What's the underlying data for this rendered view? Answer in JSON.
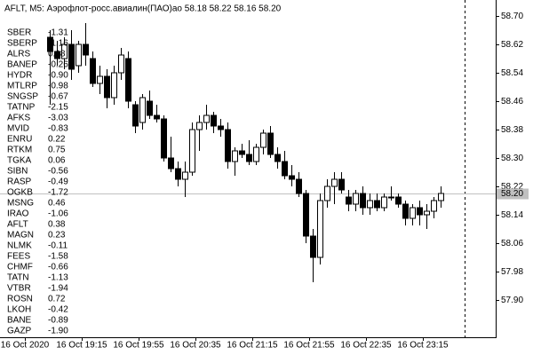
{
  "chart_data": {
    "type": "candlestick",
    "title": "AFLT, M5:  Аэрофлот-росс.авиалин(ПАО)ао  58.18 58.22 58.16 58.20",
    "open": [
      58.64,
      58.6,
      58.58,
      58.62,
      58.56,
      58.62,
      58.58,
      58.51,
      58.53,
      58.47,
      58.54,
      58.58,
      58.45,
      58.4,
      58.46,
      58.42,
      58.41,
      58.3,
      58.27,
      58.24,
      58.26,
      58.38,
      58.4,
      58.42,
      58.39,
      58.38,
      58.29,
      58.32,
      58.31,
      58.29,
      58.33,
      58.37,
      58.31,
      58.29,
      58.25,
      58.24,
      58.2,
      58.08,
      58.02,
      58.18,
      58.22,
      58.24,
      58.19,
      58.17,
      58.2,
      58.16,
      58.18,
      58.16,
      58.19,
      58.19,
      58.17,
      58.13,
      58.16,
      58.14,
      58.15,
      58.18
    ],
    "high": [
      58.66,
      58.63,
      58.64,
      58.66,
      58.63,
      58.68,
      58.6,
      58.56,
      58.55,
      58.56,
      58.61,
      58.6,
      58.46,
      58.48,
      58.49,
      58.45,
      58.42,
      58.36,
      58.29,
      58.29,
      58.4,
      58.42,
      58.45,
      58.43,
      58.41,
      58.4,
      58.33,
      58.34,
      58.35,
      58.34,
      58.38,
      58.39,
      58.33,
      58.32,
      58.28,
      58.26,
      58.21,
      58.1,
      58.2,
      58.24,
      58.26,
      58.26,
      58.21,
      58.21,
      58.22,
      58.2,
      58.2,
      58.2,
      58.22,
      58.2,
      58.18,
      58.17,
      58.18,
      58.17,
      58.19,
      58.22
    ],
    "low": [
      58.45,
      58.56,
      58.55,
      58.52,
      58.54,
      58.56,
      58.5,
      58.48,
      58.44,
      58.45,
      58.52,
      58.44,
      58.37,
      58.38,
      58.41,
      58.4,
      58.29,
      58.26,
      58.22,
      58.19,
      58.25,
      58.32,
      58.38,
      58.37,
      58.36,
      58.27,
      58.25,
      58.3,
      58.28,
      58.28,
      58.31,
      58.3,
      58.27,
      58.24,
      58.22,
      58.19,
      58.06,
      57.95,
      58.0,
      58.16,
      58.17,
      58.2,
      58.15,
      58.15,
      58.14,
      58.14,
      58.15,
      58.15,
      58.18,
      58.16,
      58.11,
      58.11,
      58.11,
      58.1,
      58.13,
      58.16
    ],
    "close": [
      58.6,
      58.58,
      58.62,
      58.55,
      58.62,
      58.59,
      58.51,
      58.53,
      58.47,
      58.54,
      58.59,
      58.46,
      58.39,
      58.47,
      58.42,
      58.41,
      58.3,
      58.27,
      58.24,
      58.26,
      58.38,
      58.4,
      58.42,
      58.39,
      58.38,
      58.29,
      58.32,
      58.31,
      58.29,
      58.33,
      58.37,
      58.31,
      58.29,
      58.25,
      58.24,
      58.2,
      58.08,
      58.02,
      58.18,
      58.22,
      58.24,
      58.21,
      58.17,
      58.2,
      58.16,
      58.18,
      58.16,
      58.19,
      58.19,
      58.17,
      58.13,
      58.16,
      58.14,
      58.15,
      58.18,
      58.2
    ],
    "ylim": [
      57.795,
      58.745
    ],
    "yticks": [
      {
        "value": 58.7,
        "label": "58.70"
      },
      58.62,
      58.54,
      58.46,
      58.38,
      {
        "value": 58.3,
        "label": "58.30"
      },
      58.22,
      58.14,
      58.06,
      57.98,
      {
        "value": 57.9,
        "label": "57.90"
      }
    ],
    "last_price": {
      "value": 58.2,
      "label": "58.20"
    },
    "xtick_labels": [
      "16 Oct 2020",
      "16 Oct 19:15",
      "16 Oct 19:55",
      "16 Oct 20:35",
      "16 Oct 21:15",
      "16 Oct 21:55",
      "16 Oct 22:35",
      "16 Oct 23:15"
    ],
    "tickers": [
      {
        "symbol": "SBER",
        "change": "-1.31"
      },
      {
        "symbol": "SBERP",
        "change": "-1.16"
      },
      {
        "symbol": "ALRS",
        "change": "0.18"
      },
      {
        "symbol": "BANEP",
        "change": "-0.26"
      },
      {
        "symbol": "HYDR",
        "change": "-0.90"
      },
      {
        "symbol": "MTLRP",
        "change": "-0.98"
      },
      {
        "symbol": "SNGSP",
        "change": "-0.67"
      },
      {
        "symbol": "TATNP",
        "change": "-2.15"
      },
      {
        "symbol": "AFKS",
        "change": "-3.03"
      },
      {
        "symbol": "MVID",
        "change": "-0.83"
      },
      {
        "symbol": "ENRU",
        "change": "0.22"
      },
      {
        "symbol": "RTKM",
        "change": "0.75"
      },
      {
        "symbol": "TGKA",
        "change": "0.06"
      },
      {
        "symbol": "SIBN",
        "change": "-0.56"
      },
      {
        "symbol": "RASP",
        "change": "-0.49"
      },
      {
        "symbol": "OGKB",
        "change": "-1.72"
      },
      {
        "symbol": "MSNG",
        "change": "0.46"
      },
      {
        "symbol": "IRAO",
        "change": "-1.06"
      },
      {
        "symbol": "AFLT",
        "change": "0.38"
      },
      {
        "symbol": "MAGN",
        "change": "0.23"
      },
      {
        "symbol": "NLMK",
        "change": "-0.11"
      },
      {
        "symbol": "FEES",
        "change": "-1.58"
      },
      {
        "symbol": "CHMF",
        "change": "-0.66"
      },
      {
        "symbol": "TATN",
        "change": "-1.13"
      },
      {
        "symbol": "VTBR",
        "change": "-1.94"
      },
      {
        "symbol": "ROSN",
        "change": "0.72"
      },
      {
        "symbol": "LKOH",
        "change": "-0.42"
      },
      {
        "symbol": "BANE",
        "change": "-0.89"
      },
      {
        "symbol": "GAZP",
        "change": "-1.90"
      }
    ]
  }
}
